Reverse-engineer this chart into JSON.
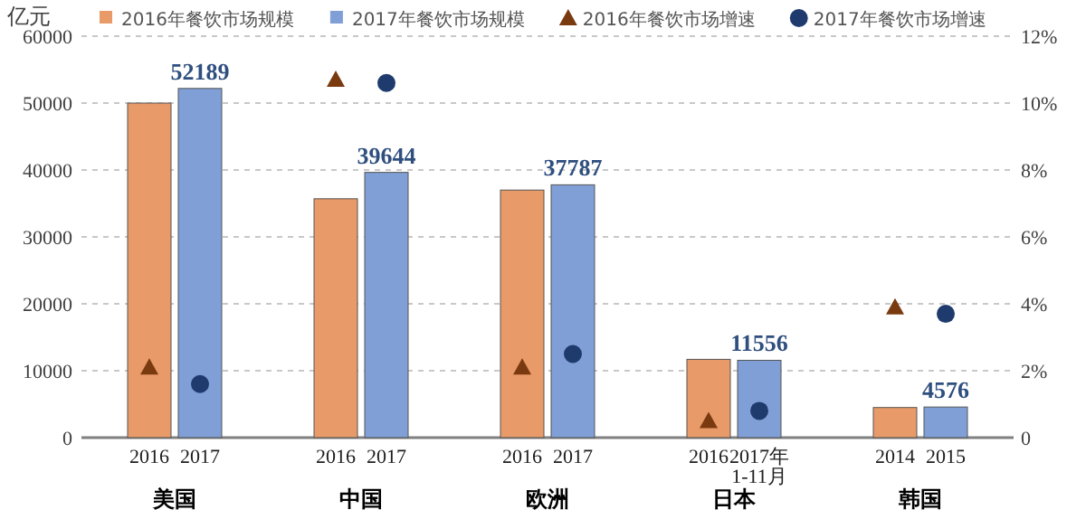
{
  "chart_data": {
    "type": "bar",
    "ylabel": "亿元",
    "categories": [
      "美国",
      "中国",
      "欧洲",
      "日本",
      "韩国"
    ],
    "series": [
      {
        "name": "2016年餐饮市场规模",
        "color": "#e89a68",
        "values": [
          50000,
          35700,
          37000,
          11700,
          4500
        ]
      },
      {
        "name": "2017年餐饮市场规模",
        "color": "#7f9fd6",
        "values": [
          52189,
          39644,
          37787,
          11556,
          4576
        ],
        "value_labels": [
          "52189",
          "39644",
          "37787",
          "11556",
          "4576"
        ]
      },
      {
        "name": "2016年餐饮市场增速",
        "type": "scatter",
        "marker": "triangle",
        "axis": "y2",
        "color": "#7a3a10",
        "values": [
          2.1,
          10.7,
          2.1,
          0.5,
          3.9
        ]
      },
      {
        "name": "2017年餐饮市场增速",
        "type": "scatter",
        "marker": "circle",
        "axis": "y2",
        "color": "#1f3b6e",
        "values": [
          1.6,
          10.6,
          2.5,
          0.8,
          3.7
        ]
      }
    ],
    "ylim": [
      0,
      60000
    ],
    "yticks": [
      0,
      10000,
      20000,
      30000,
      40000,
      50000,
      60000
    ],
    "y2lim": [
      0,
      12
    ],
    "y2ticks": [
      0,
      {
        "value": 2,
        "label": "2%"
      },
      {
        "value": 4,
        "label": "4%"
      },
      {
        "value": 6,
        "label": "6%"
      },
      {
        "value": 8,
        "label": "8%"
      },
      {
        "value": 10,
        "label": "10%"
      },
      {
        "value": 12,
        "label": "12%"
      }
    ],
    "grid": "y",
    "legend": "top",
    "annotations": [
      "2016",
      "2017",
      "2016",
      "2017",
      "2016",
      "2017",
      "2016",
      "2017年\n1-11月",
      "2014",
      "2015"
    ]
  }
}
